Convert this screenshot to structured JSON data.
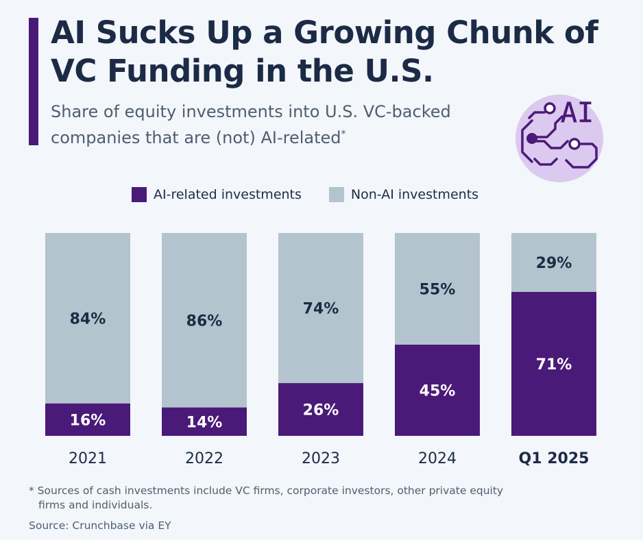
{
  "title": "AI Sucks Up a Growing Chunk of VC Funding in the U.S.",
  "subtitle": "Share of equity investments into U.S. VC-backed companies that are (not) AI-related",
  "subtitle_mark": "*",
  "logo_text": "AI",
  "legend": {
    "ai": "AI-related investments",
    "non_ai": "Non-AI investments"
  },
  "colors": {
    "ai": "#4a1a78",
    "non_ai": "#b3c4ce",
    "text_dark": "#1c2b45",
    "text_light": "#ffffff"
  },
  "chart_data": {
    "type": "bar",
    "stacked": true,
    "categories": [
      "2021",
      "2022",
      "2023",
      "2024",
      "Q1 2025"
    ],
    "highlight_category": "Q1 2025",
    "series": [
      {
        "name": "AI-related investments",
        "values": [
          16,
          14,
          26,
          45,
          71
        ]
      },
      {
        "name": "Non-AI investments",
        "values": [
          84,
          86,
          74,
          55,
          29
        ]
      }
    ],
    "value_suffix": "%",
    "ylim": [
      0,
      100
    ],
    "grid": false,
    "legend_position": "top"
  },
  "footnote_line1": "* Sources of cash investments include VC firms, corporate investors, other private equity",
  "footnote_line2": "firms and individuals.",
  "source": "Source: Crunchbase via EY"
}
